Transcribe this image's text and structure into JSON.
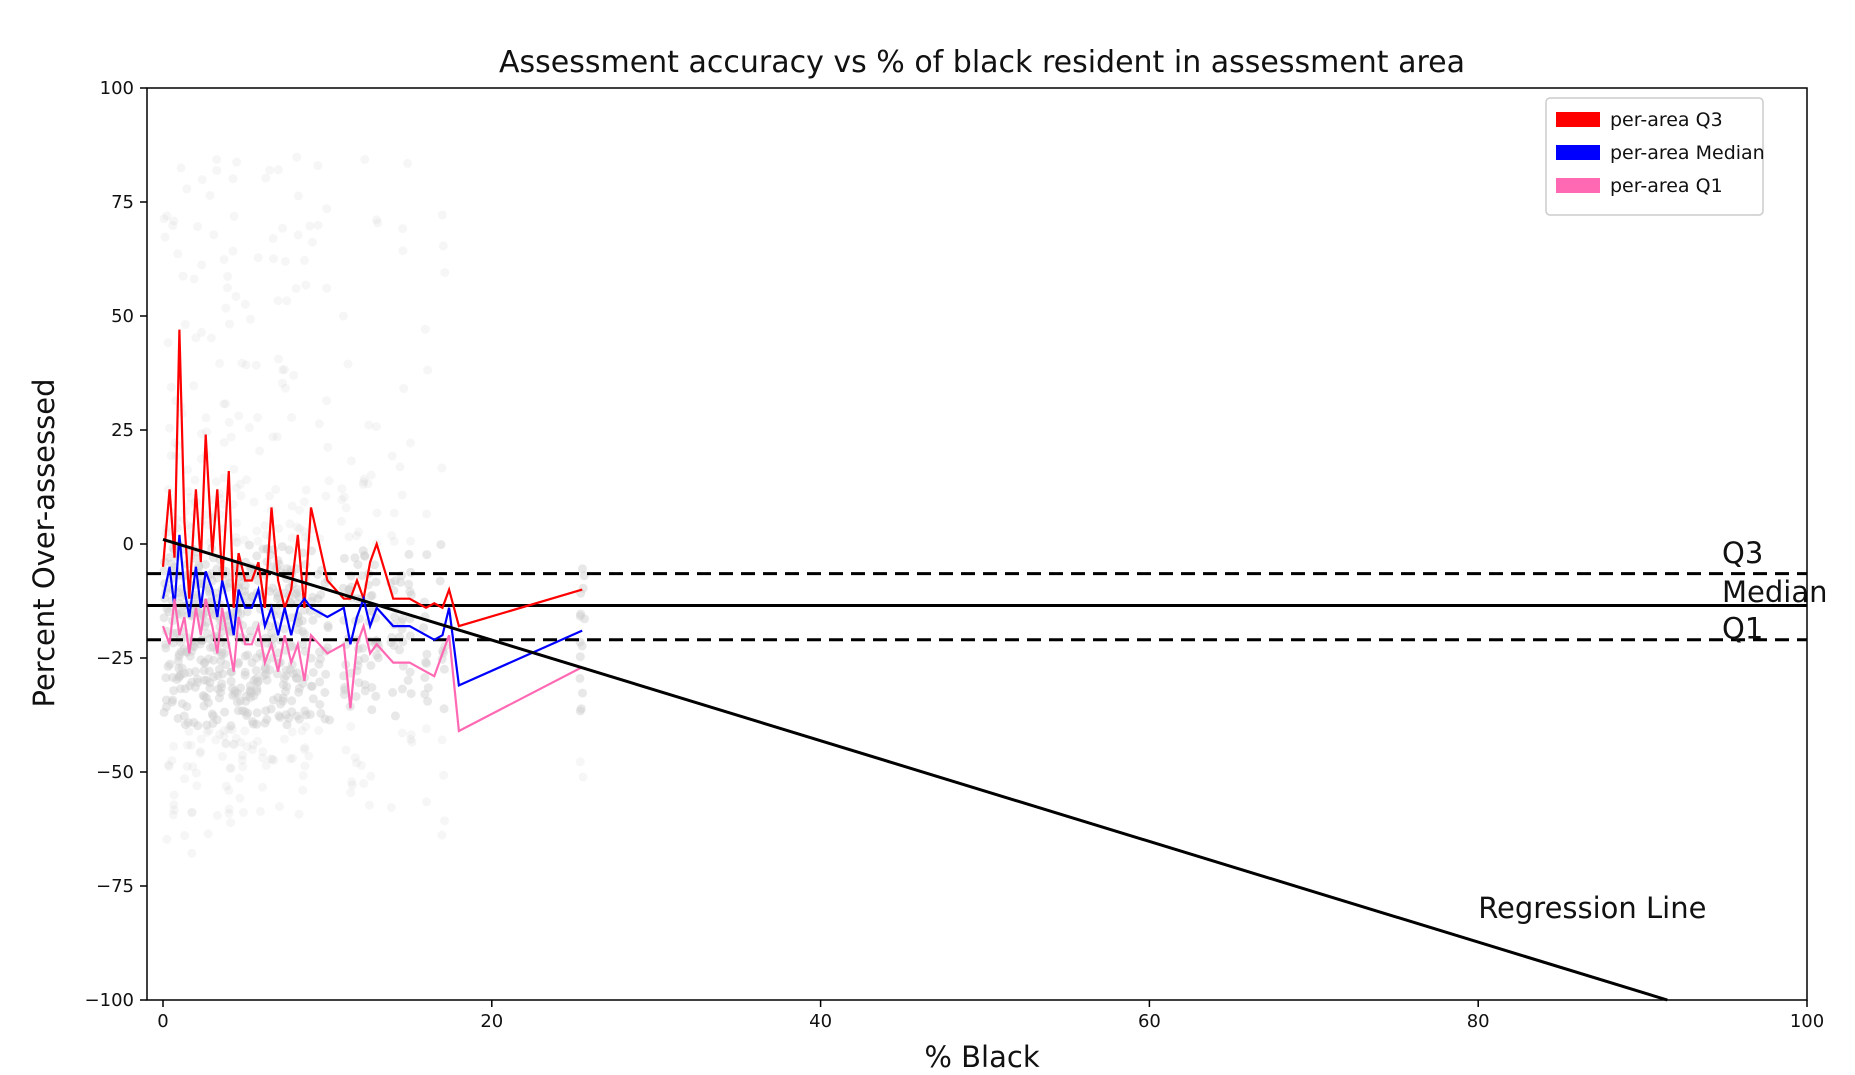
{
  "chart_data": {
    "type": "line",
    "title": "Assessment accuracy vs % of black resident in assessment area",
    "xlabel": "% Black",
    "ylabel": "Percent Over-assessed",
    "xlim": [
      0,
      100
    ],
    "ylim": [
      -100,
      100
    ],
    "xticks": [
      0,
      20,
      40,
      60,
      80,
      100
    ],
    "yticks": [
      100,
      75,
      50,
      25,
      0,
      -25,
      -50,
      -75,
      -100
    ],
    "xtick_labels": [
      "0",
      "20",
      "40",
      "60",
      "80",
      "100"
    ],
    "ytick_labels": [
      "100",
      "75",
      "50",
      "25",
      "0",
      "−25",
      "−50",
      "−75",
      "−100"
    ],
    "grid": false,
    "legend_position": "top-right",
    "series": [
      {
        "name": "per-area Q3",
        "color": "#ff0000",
        "x": [
          0,
          0.4,
          0.7,
          1.0,
          1.3,
          1.6,
          2.0,
          2.3,
          2.6,
          3.0,
          3.3,
          3.6,
          4.0,
          4.3,
          4.6,
          5.0,
          5.4,
          5.8,
          6.2,
          6.6,
          7.0,
          7.4,
          7.8,
          8.2,
          8.6,
          9.0,
          10.0,
          11.0,
          11.4,
          11.8,
          12.2,
          12.6,
          13.0,
          14.0,
          15.0,
          16.0,
          16.5,
          17.0,
          17.4,
          18.0,
          25.5
        ],
        "y": [
          -5,
          12,
          -3,
          47,
          5,
          -12,
          12,
          -4,
          24,
          -2,
          12,
          -8,
          16,
          -14,
          -2,
          -8,
          -8,
          -4,
          -14,
          8,
          -8,
          -14,
          -10,
          2,
          -14,
          8,
          -8,
          -12,
          -12,
          -8,
          -12,
          -4,
          0,
          -12,
          -12,
          -14,
          -13,
          -14,
          -10,
          -18,
          -10
        ]
      },
      {
        "name": "per-area Median",
        "color": "#0000ff",
        "x": [
          0,
          0.4,
          0.7,
          1.0,
          1.3,
          1.6,
          2.0,
          2.3,
          2.6,
          3.0,
          3.3,
          3.6,
          4.0,
          4.3,
          4.6,
          5.0,
          5.4,
          5.8,
          6.2,
          6.6,
          7.0,
          7.4,
          7.8,
          8.2,
          8.6,
          9.0,
          10.0,
          11.0,
          11.4,
          11.8,
          12.2,
          12.6,
          13.0,
          14.0,
          15.0,
          16.0,
          16.5,
          17.0,
          17.4,
          18.0,
          25.5
        ],
        "y": [
          -12,
          -5,
          -14,
          2,
          -10,
          -16,
          -5,
          -14,
          -6,
          -10,
          -16,
          -8,
          -14,
          -20,
          -10,
          -14,
          -14,
          -10,
          -18,
          -14,
          -20,
          -14,
          -20,
          -14,
          -12,
          -14,
          -16,
          -14,
          -22,
          -16,
          -12,
          -18,
          -14,
          -18,
          -18,
          -20,
          -21,
          -20,
          -14,
          -31,
          -19
        ]
      },
      {
        "name": "per-area Q1",
        "color": "#ff69b4",
        "x": [
          0,
          0.4,
          0.7,
          1.0,
          1.3,
          1.6,
          2.0,
          2.3,
          2.6,
          3.0,
          3.3,
          3.6,
          4.0,
          4.3,
          4.6,
          5.0,
          5.4,
          5.8,
          6.2,
          6.6,
          7.0,
          7.4,
          7.8,
          8.2,
          8.6,
          9.0,
          10.0,
          11.0,
          11.4,
          11.8,
          12.2,
          12.6,
          13.0,
          14.0,
          15.0,
          16.0,
          16.5,
          17.0,
          17.4,
          18.0,
          25.5
        ],
        "y": [
          -18,
          -22,
          -12,
          -20,
          -16,
          -24,
          -14,
          -20,
          -12,
          -18,
          -24,
          -14,
          -22,
          -28,
          -16,
          -22,
          -22,
          -18,
          -26,
          -22,
          -28,
          -20,
          -26,
          -22,
          -30,
          -20,
          -24,
          -22,
          -36,
          -22,
          -18,
          -24,
          -22,
          -26,
          -26,
          -28,
          -29,
          -24,
          -20,
          -41,
          -27
        ]
      },
      {
        "name": "",
        "color": "#000000",
        "x": [
          0,
          91.5
        ],
        "y": [
          1,
          -100
        ]
      }
    ],
    "reference_lines": [
      {
        "label": "Q3",
        "y": -6.5,
        "style": "dashed",
        "color": "#000000"
      },
      {
        "label": "Median",
        "y": -13.5,
        "style": "solid",
        "color": "#000000"
      },
      {
        "label": "Q1",
        "y": -21,
        "style": "dashed",
        "color": "#000000"
      }
    ],
    "annotations": [
      {
        "text": "Regression Line",
        "x": 80,
        "y": -82
      }
    ],
    "scatter_color": "#cccccc"
  }
}
